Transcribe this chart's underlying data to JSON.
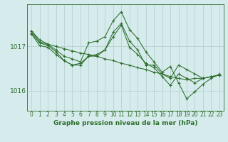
{
  "xlabel": "Graphe pression niveau de la mer (hPa)",
  "background_color": "#d6ecec",
  "plot_bg_color": "#d6ecec",
  "grid_color": "#b0cccc",
  "line_color": "#2d6e2d",
  "hours": [
    0,
    1,
    2,
    3,
    4,
    5,
    6,
    7,
    8,
    9,
    10,
    11,
    12,
    13,
    14,
    15,
    16,
    17,
    18,
    19,
    20,
    21,
    22,
    23
  ],
  "series1": [
    1017.35,
    1017.15,
    1017.05,
    1017.0,
    1016.95,
    1016.9,
    1016.85,
    1016.82,
    1016.78,
    1016.72,
    1016.68,
    1016.62,
    1016.58,
    1016.52,
    1016.48,
    1016.42,
    1016.38,
    1016.32,
    1016.28,
    1016.25,
    1016.28,
    1016.28,
    1016.32,
    1016.35
  ],
  "series2": [
    1017.35,
    1017.1,
    1017.05,
    1016.92,
    1016.78,
    1016.72,
    1016.65,
    1017.08,
    1017.12,
    1017.22,
    1017.58,
    1017.78,
    1017.38,
    1017.18,
    1016.88,
    1016.65,
    1016.42,
    1016.55,
    1016.18,
    1015.82,
    1015.98,
    1016.15,
    1016.28,
    1016.38
  ],
  "series3": [
    1017.3,
    1017.08,
    1017.02,
    1016.88,
    1016.68,
    1016.58,
    1016.58,
    1016.78,
    1016.82,
    1016.92,
    1017.32,
    1017.52,
    1017.12,
    1016.92,
    1016.58,
    1016.58,
    1016.38,
    1016.28,
    1016.58,
    1016.48,
    1016.38,
    1016.28,
    1016.32,
    1016.35
  ],
  "series4": [
    1017.28,
    1017.02,
    1016.98,
    1016.82,
    1016.68,
    1016.58,
    1016.62,
    1016.78,
    1016.78,
    1016.92,
    1017.22,
    1017.48,
    1016.98,
    1016.82,
    1016.62,
    1016.52,
    1016.32,
    1016.12,
    1016.38,
    1016.28,
    1016.18,
    1016.28,
    1016.32,
    1016.35
  ],
  "ylim": [
    1015.55,
    1017.95
  ],
  "yticks": [
    1016.0,
    1017.0
  ],
  "xlabel_fontsize": 6.5,
  "xlabel_fontweight": "bold",
  "tick_fontsize": 5.5,
  "ytick_fontsize": 6.5
}
